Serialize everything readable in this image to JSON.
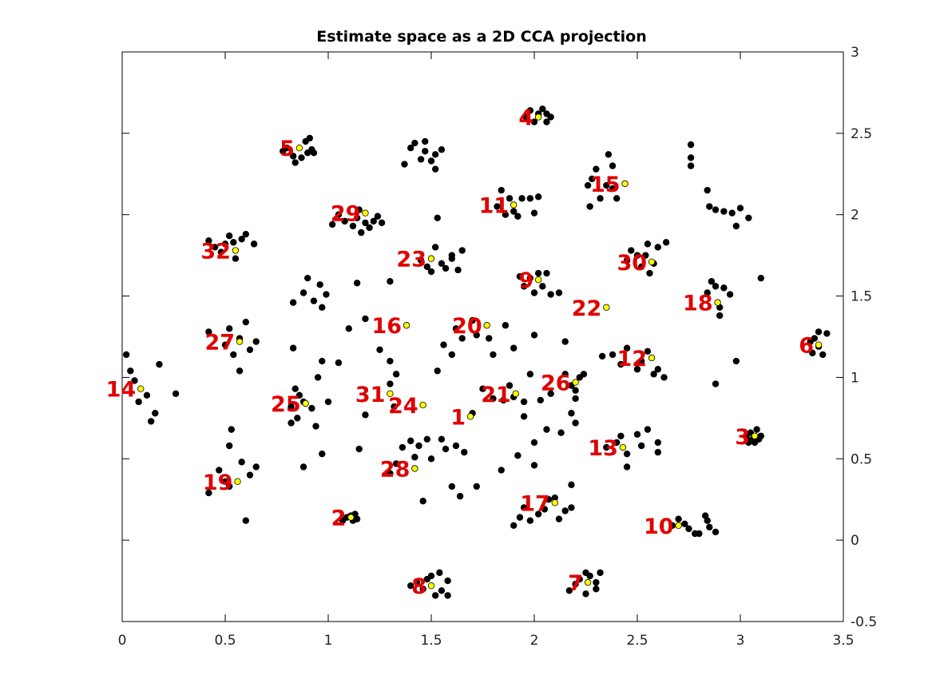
{
  "chart_data": {
    "type": "scatter",
    "title": "Estimate space as a 2D CCA projection",
    "xlabel": "",
    "ylabel": "",
    "xlim": [
      0,
      3.5
    ],
    "ylim": [
      -0.5,
      3
    ],
    "x_ticks": [
      0,
      0.5,
      1,
      1.5,
      2,
      2.5,
      3,
      3.5
    ],
    "x_tick_labels": [
      "0",
      "0.5",
      "1",
      "1.5",
      "2",
      "2.5",
      "3",
      "3.5"
    ],
    "y_ticks": [
      0,
      0.5,
      1,
      1.5,
      2,
      2.5,
      3
    ],
    "y_tick_labels": [
      "0",
      "0.5",
      "1",
      "1.5",
      "2",
      "2.5",
      "3"
    ],
    "y_tick_labels_outside": [
      "-0.5"
    ],
    "grid": false,
    "colors": {
      "points": "#000000",
      "centers": "#ffff00",
      "labels": "#e00000"
    },
    "estimates": [
      [
        0.02,
        1.14
      ],
      [
        0.04,
        1.04
      ],
      [
        0.06,
        0.98
      ],
      [
        0.08,
        0.85
      ],
      [
        0.12,
        0.89
      ],
      [
        0.14,
        0.73
      ],
      [
        0.16,
        0.78
      ],
      [
        0.18,
        1.08
      ],
      [
        0.26,
        0.9
      ],
      [
        0.42,
        1.84
      ],
      [
        0.45,
        1.8
      ],
      [
        0.48,
        1.77
      ],
      [
        0.5,
        1.82
      ],
      [
        0.52,
        1.87
      ],
      [
        0.54,
        1.83
      ],
      [
        0.55,
        1.73
      ],
      [
        0.58,
        1.85
      ],
      [
        0.6,
        1.88
      ],
      [
        0.64,
        1.82
      ],
      [
        0.42,
        1.28
      ],
      [
        0.5,
        1.2
      ],
      [
        0.52,
        1.3
      ],
      [
        0.54,
        1.14
      ],
      [
        0.57,
        1.24
      ],
      [
        0.6,
        1.34
      ],
      [
        0.62,
        1.17
      ],
      [
        0.65,
        1.22
      ],
      [
        0.57,
        1.04
      ],
      [
        0.42,
        0.29
      ],
      [
        0.47,
        0.43
      ],
      [
        0.5,
        0.36
      ],
      [
        0.52,
        0.33
      ],
      [
        0.52,
        0.58
      ],
      [
        0.53,
        0.68
      ],
      [
        0.58,
        0.48
      ],
      [
        0.62,
        0.4
      ],
      [
        0.65,
        0.45
      ],
      [
        0.6,
        0.12
      ],
      [
        0.78,
        2.39
      ],
      [
        0.8,
        2.41
      ],
      [
        0.83,
        2.36
      ],
      [
        0.84,
        2.32
      ],
      [
        0.87,
        2.35
      ],
      [
        0.89,
        2.45
      ],
      [
        0.9,
        2.38
      ],
      [
        0.91,
        2.47
      ],
      [
        0.92,
        2.4
      ],
      [
        0.93,
        2.38
      ],
      [
        0.82,
        0.82
      ],
      [
        0.84,
        0.93
      ],
      [
        0.86,
        0.89
      ],
      [
        0.88,
        0.85
      ],
      [
        0.92,
        0.81
      ],
      [
        0.85,
        0.75
      ],
      [
        0.82,
        0.72
      ],
      [
        0.88,
        0.45
      ],
      [
        0.94,
        0.7
      ],
      [
        0.97,
        0.53
      ],
      [
        0.83,
        1.46
      ],
      [
        0.88,
        1.52
      ],
      [
        0.9,
        1.61
      ],
      [
        0.93,
        1.47
      ],
      [
        0.97,
        1.43
      ],
      [
        0.96,
        1.57
      ],
      [
        0.99,
        1.51
      ],
      [
        0.95,
        1.0
      ],
      [
        0.97,
        1.1
      ],
      [
        1.0,
        0.85
      ],
      [
        1.05,
        1.09
      ],
      [
        1.1,
        1.3
      ],
      [
        0.83,
        1.18
      ],
      [
        1.02,
        1.94
      ],
      [
        1.05,
        2.0
      ],
      [
        1.08,
        1.96
      ],
      [
        1.12,
        1.93
      ],
      [
        1.14,
        1.98
      ],
      [
        1.15,
        2.03
      ],
      [
        1.16,
        1.89
      ],
      [
        1.18,
        1.95
      ],
      [
        1.2,
        1.92
      ],
      [
        1.22,
        1.96
      ],
      [
        1.24,
        1.99
      ],
      [
        1.26,
        1.95
      ],
      [
        1.14,
        1.58
      ],
      [
        1.07,
        0.12
      ],
      [
        1.09,
        0.14
      ],
      [
        1.11,
        0.15
      ],
      [
        1.12,
        0.12
      ],
      [
        1.13,
        0.16
      ],
      [
        1.14,
        0.13
      ],
      [
        1.15,
        0.56
      ],
      [
        1.18,
        0.77
      ],
      [
        1.25,
        1.17
      ],
      [
        1.3,
        1.1
      ],
      [
        1.33,
        1.02
      ],
      [
        1.3,
        0.96
      ],
      [
        1.32,
        0.82
      ],
      [
        1.3,
        0.41
      ],
      [
        1.33,
        0.47
      ],
      [
        1.36,
        0.57
      ],
      [
        1.4,
        0.61
      ],
      [
        1.42,
        0.51
      ],
      [
        1.44,
        0.58
      ],
      [
        1.46,
        0.24
      ],
      [
        1.48,
        0.62
      ],
      [
        1.5,
        0.5
      ],
      [
        1.53,
        1.04
      ],
      [
        1.55,
        0.62
      ],
      [
        1.57,
        0.56
      ],
      [
        1.6,
        0.33
      ],
      [
        1.62,
        0.58
      ],
      [
        1.64,
        0.27
      ],
      [
        1.66,
        0.54
      ],
      [
        1.7,
        0.78
      ],
      [
        1.72,
        0.33
      ],
      [
        1.75,
        0.93
      ],
      [
        1.8,
        0.87
      ],
      [
        1.84,
        0.43
      ],
      [
        1.85,
        0.86
      ],
      [
        1.88,
        0.95
      ],
      [
        1.9,
        0.88
      ],
      [
        1.92,
        0.52
      ],
      [
        1.95,
        0.76
      ],
      [
        1.95,
        0.85
      ],
      [
        1.98,
        1.02
      ],
      [
        2.0,
        0.46
      ],
      [
        2.0,
        0.6
      ],
      [
        2.03,
        0.86
      ],
      [
        2.06,
        0.68
      ],
      [
        2.08,
        0.9
      ],
      [
        2.15,
        1.22
      ],
      [
        2.18,
        0.78
      ],
      [
        2.2,
        0.72
      ],
      [
        2.13,
        0.66
      ],
      [
        1.56,
        1.2
      ],
      [
        1.6,
        1.14
      ],
      [
        1.62,
        1.3
      ],
      [
        1.65,
        1.24
      ],
      [
        1.7,
        1.35
      ],
      [
        1.72,
        1.26
      ],
      [
        1.78,
        1.24
      ],
      [
        1.8,
        1.14
      ],
      [
        1.86,
        1.32
      ],
      [
        1.9,
        1.18
      ],
      [
        2.0,
        1.26
      ],
      [
        1.3,
        1.59
      ],
      [
        1.18,
        1.36
      ],
      [
        1.37,
        2.31
      ],
      [
        1.4,
        2.41
      ],
      [
        1.42,
        2.44
      ],
      [
        1.45,
        2.34
      ],
      [
        1.47,
        2.39
      ],
      [
        1.47,
        2.45
      ],
      [
        1.5,
        2.33
      ],
      [
        1.52,
        2.37
      ],
      [
        1.52,
        2.28
      ],
      [
        1.55,
        2.4
      ],
      [
        1.45,
        1.72
      ],
      [
        1.48,
        1.68
      ],
      [
        1.5,
        1.65
      ],
      [
        1.52,
        1.8
      ],
      [
        1.55,
        1.7
      ],
      [
        1.57,
        1.67
      ],
      [
        1.6,
        1.75
      ],
      [
        1.6,
        1.73
      ],
      [
        1.63,
        1.66
      ],
      [
        1.65,
        1.78
      ],
      [
        1.53,
        1.98
      ],
      [
        1.4,
        -0.28
      ],
      [
        1.43,
        -0.26
      ],
      [
        1.46,
        -0.3
      ],
      [
        1.48,
        -0.24
      ],
      [
        1.5,
        -0.22
      ],
      [
        1.52,
        -0.34
      ],
      [
        1.54,
        -0.2
      ],
      [
        1.55,
        -0.31
      ],
      [
        1.58,
        -0.25
      ],
      [
        1.58,
        -0.34
      ],
      [
        1.82,
        2.05
      ],
      [
        1.84,
        2.15
      ],
      [
        1.86,
        2.0
      ],
      [
        1.88,
        2.1
      ],
      [
        1.9,
        2.02
      ],
      [
        1.92,
        1.99
      ],
      [
        1.94,
        2.1
      ],
      [
        2.0,
        2.01
      ],
      [
        2.02,
        2.11
      ],
      [
        1.98,
        2.1
      ],
      [
        1.96,
        2.6
      ],
      [
        1.98,
        2.64
      ],
      [
        2.0,
        2.57
      ],
      [
        2.02,
        2.62
      ],
      [
        2.04,
        2.65
      ],
      [
        2.06,
        2.57
      ],
      [
        2.08,
        2.6
      ],
      [
        2.06,
        2.62
      ],
      [
        1.93,
        1.62
      ],
      [
        1.95,
        1.56
      ],
      [
        1.98,
        1.61
      ],
      [
        2.0,
        1.52
      ],
      [
        2.02,
        1.64
      ],
      [
        2.04,
        1.56
      ],
      [
        2.06,
        1.64
      ],
      [
        2.08,
        1.51
      ],
      [
        2.12,
        1.52
      ],
      [
        1.9,
        0.09
      ],
      [
        1.93,
        0.14
      ],
      [
        1.95,
        0.2
      ],
      [
        1.98,
        0.12
      ],
      [
        2.02,
        0.16
      ],
      [
        2.05,
        0.19
      ],
      [
        2.07,
        0.25
      ],
      [
        2.1,
        0.26
      ],
      [
        2.15,
        0.18
      ],
      [
        2.12,
        0.13
      ],
      [
        2.18,
        0.34
      ],
      [
        2.18,
        0.2
      ],
      [
        2.15,
        1.02
      ],
      [
        2.18,
        0.95
      ],
      [
        2.2,
        0.92
      ],
      [
        2.22,
        1.0
      ],
      [
        2.24,
        1.02
      ],
      [
        2.2,
        0.87
      ],
      [
        2.17,
        -0.31
      ],
      [
        2.2,
        -0.27
      ],
      [
        2.22,
        -0.24
      ],
      [
        2.25,
        -0.33
      ],
      [
        2.27,
        -0.22
      ],
      [
        2.3,
        -0.3
      ],
      [
        2.3,
        -0.26
      ],
      [
        2.32,
        -0.2
      ],
      [
        2.25,
        -0.2
      ],
      [
        2.26,
        2.18
      ],
      [
        2.28,
        2.22
      ],
      [
        2.3,
        2.28
      ],
      [
        2.32,
        2.1
      ],
      [
        2.35,
        2.18
      ],
      [
        2.38,
        2.3
      ],
      [
        2.38,
        2.16
      ],
      [
        2.4,
        2.1
      ],
      [
        2.36,
        2.37
      ],
      [
        2.27,
        2.05
      ],
      [
        2.33,
        1.13
      ],
      [
        2.38,
        1.14
      ],
      [
        2.42,
        1.08
      ],
      [
        2.45,
        1.18
      ],
      [
        2.5,
        1.05
      ],
      [
        2.52,
        1.1
      ],
      [
        2.55,
        1.16
      ],
      [
        2.58,
        1.02
      ],
      [
        2.6,
        1.05
      ],
      [
        2.63,
        1.0
      ],
      [
        2.35,
        0.57
      ],
      [
        2.4,
        0.6
      ],
      [
        2.42,
        0.64
      ],
      [
        2.45,
        0.53
      ],
      [
        2.45,
        0.45
      ],
      [
        2.5,
        0.65
      ],
      [
        2.52,
        0.58
      ],
      [
        2.55,
        0.68
      ],
      [
        2.6,
        0.54
      ],
      [
        2.6,
        0.6
      ],
      [
        2.45,
        1.72
      ],
      [
        2.47,
        1.78
      ],
      [
        2.5,
        1.75
      ],
      [
        2.52,
        1.68
      ],
      [
        2.55,
        1.82
      ],
      [
        2.56,
        1.64
      ],
      [
        2.58,
        1.7
      ],
      [
        2.6,
        1.8
      ],
      [
        2.54,
        1.75
      ],
      [
        2.64,
        1.83
      ],
      [
        2.67,
        0.09
      ],
      [
        2.7,
        0.13
      ],
      [
        2.73,
        0.1
      ],
      [
        2.75,
        0.07
      ],
      [
        2.78,
        0.04
      ],
      [
        2.8,
        0.04
      ],
      [
        2.83,
        0.15
      ],
      [
        2.85,
        0.08
      ],
      [
        2.88,
        0.05
      ],
      [
        2.84,
        0.12
      ],
      [
        2.76,
        2.43
      ],
      [
        2.76,
        2.35
      ],
      [
        2.76,
        2.3
      ],
      [
        2.85,
        2.05
      ],
      [
        2.88,
        2.03
      ],
      [
        2.92,
        2.02
      ],
      [
        2.96,
        2.01
      ],
      [
        3.0,
        2.04
      ],
      [
        2.98,
        1.93
      ],
      [
        3.04,
        1.98
      ],
      [
        2.84,
        2.15
      ],
      [
        2.84,
        1.52
      ],
      [
        2.86,
        1.59
      ],
      [
        2.88,
        1.56
      ],
      [
        2.9,
        1.43
      ],
      [
        2.92,
        1.55
      ],
      [
        2.95,
        1.51
      ],
      [
        2.9,
        1.38
      ],
      [
        2.88,
        0.96
      ],
      [
        2.98,
        1.1
      ],
      [
        3.1,
        1.61
      ],
      [
        3.03,
        0.63
      ],
      [
        3.05,
        0.66
      ],
      [
        3.07,
        0.6
      ],
      [
        3.08,
        0.68
      ],
      [
        3.09,
        0.62
      ],
      [
        3.1,
        0.64
      ],
      [
        3.06,
        0.62
      ],
      [
        3.04,
        0.6
      ],
      [
        3.35,
        1.15
      ],
      [
        3.36,
        1.24
      ],
      [
        3.38,
        1.19
      ],
      [
        3.38,
        1.28
      ],
      [
        3.4,
        1.14
      ],
      [
        3.42,
        1.27
      ],
      [
        3.34,
        1.22
      ]
    ],
    "centers": [
      {
        "label": "1",
        "x": 1.69,
        "y": 0.76
      },
      {
        "label": "2",
        "x": 1.11,
        "y": 0.14
      },
      {
        "label": "3",
        "x": 3.07,
        "y": 0.64
      },
      {
        "label": "4",
        "x": 2.02,
        "y": 2.6
      },
      {
        "label": "5",
        "x": 0.86,
        "y": 2.41
      },
      {
        "label": "6",
        "x": 3.38,
        "y": 1.2
      },
      {
        "label": "7",
        "x": 2.26,
        "y": -0.26
      },
      {
        "label": "8",
        "x": 1.5,
        "y": -0.28
      },
      {
        "label": "9",
        "x": 2.02,
        "y": 1.6
      },
      {
        "label": "10",
        "x": 2.7,
        "y": 0.09
      },
      {
        "label": "11",
        "x": 1.9,
        "y": 2.06
      },
      {
        "label": "12",
        "x": 2.57,
        "y": 1.12
      },
      {
        "label": "13",
        "x": 2.43,
        "y": 0.57
      },
      {
        "label": "14",
        "x": 0.09,
        "y": 0.93
      },
      {
        "label": "15",
        "x": 2.44,
        "y": 2.19
      },
      {
        "label": "16",
        "x": 1.38,
        "y": 1.32
      },
      {
        "label": "17",
        "x": 2.1,
        "y": 0.23
      },
      {
        "label": "18",
        "x": 2.89,
        "y": 1.46
      },
      {
        "label": "19",
        "x": 0.56,
        "y": 0.36
      },
      {
        "label": "20",
        "x": 1.77,
        "y": 1.32
      },
      {
        "label": "21",
        "x": 1.91,
        "y": 0.9
      },
      {
        "label": "22",
        "x": 2.35,
        "y": 1.43
      },
      {
        "label": "23",
        "x": 1.5,
        "y": 1.73
      },
      {
        "label": "24",
        "x": 1.46,
        "y": 0.83
      },
      {
        "label": "25",
        "x": 0.89,
        "y": 0.84
      },
      {
        "label": "26",
        "x": 2.2,
        "y": 0.97
      },
      {
        "label": "27",
        "x": 0.57,
        "y": 1.22
      },
      {
        "label": "28",
        "x": 1.42,
        "y": 0.44
      },
      {
        "label": "29",
        "x": 1.18,
        "y": 2.01
      },
      {
        "label": "30",
        "x": 2.57,
        "y": 1.71
      },
      {
        "label": "31",
        "x": 1.3,
        "y": 0.9
      },
      {
        "label": "32",
        "x": 0.55,
        "y": 1.78
      }
    ]
  }
}
